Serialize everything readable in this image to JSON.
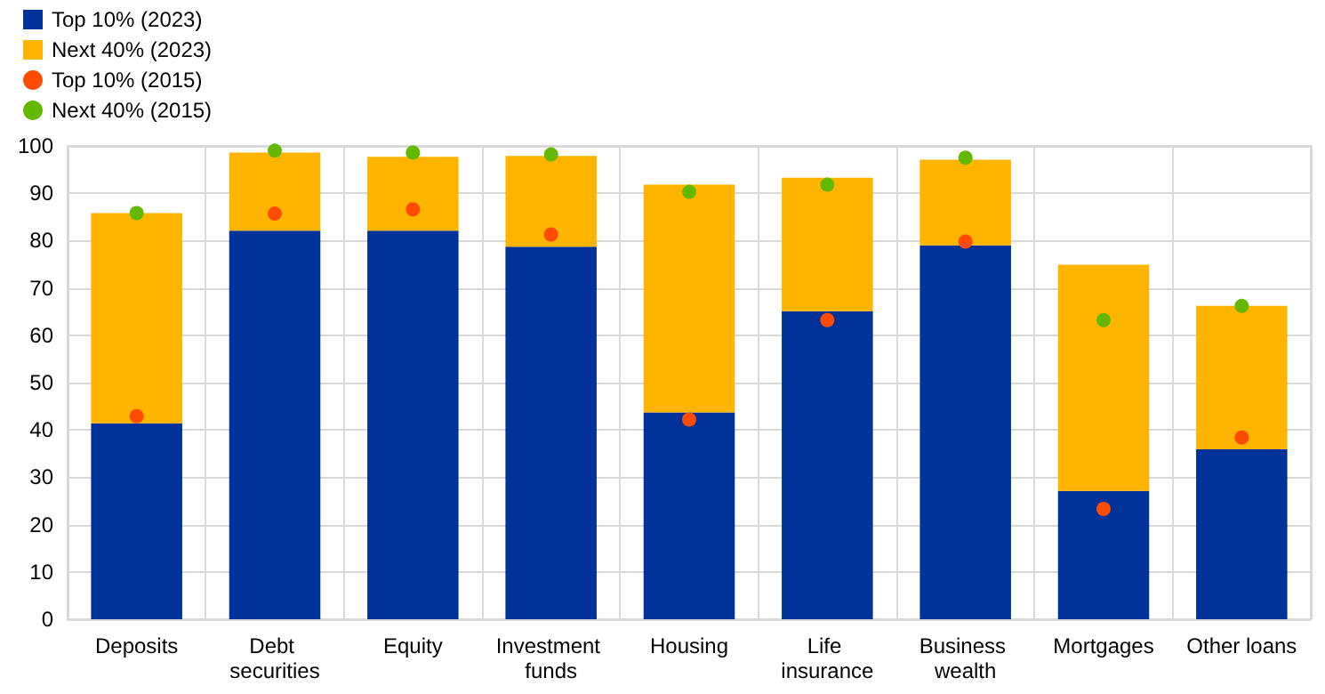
{
  "chart_data": {
    "type": "bar",
    "stacked": true,
    "categories": [
      "Deposits",
      "Debt securities",
      "Equity",
      "Investment funds",
      "Housing",
      "Life insurance",
      "Business wealth",
      "Mortgages",
      "Other loans"
    ],
    "series": [
      {
        "name": "Top 10% (2023)",
        "color": "#003299",
        "values": [
          41.4,
          82.1,
          82.1,
          78.7,
          43.7,
          65.1,
          79.0,
          27.1,
          35.9
        ]
      },
      {
        "name": "Next 40% (2023)",
        "color": "#ffb400",
        "values": [
          44.4,
          16.5,
          15.6,
          19.2,
          48.1,
          28.2,
          18.1,
          47.8,
          30.3
        ]
      },
      {
        "name": "Top 10% (2015)",
        "type": "scatter",
        "color": "#ff4b00",
        "x": [
          "Deposits",
          "Debt securities",
          "Equity",
          "Investment funds",
          "Housing",
          "Life insurance",
          "Business wealth",
          "Mortgages",
          "Other loans"
        ],
        "values": [
          42.9,
          85.7,
          86.6,
          81.3,
          42.2,
          63.2,
          79.8,
          23.3,
          38.4
        ]
      },
      {
        "name": "Next 40% (2015)",
        "type": "scatter",
        "color": "#65b800",
        "x": [
          "Deposits",
          "Debt securities",
          "Equity",
          "Investment funds",
          "Housing",
          "Life insurance",
          "Business wealth",
          "Mortgages",
          "Other loans"
        ],
        "values": [
          85.8,
          99.0,
          98.6,
          98.2,
          90.3,
          91.8,
          97.5,
          63.2,
          66.2
        ]
      }
    ],
    "ylim": [
      0,
      100
    ],
    "yticks": [
      0,
      10,
      20,
      30,
      40,
      50,
      60,
      70,
      80,
      90,
      100
    ],
    "grid": true,
    "legend": "top left",
    "marker": "circle"
  }
}
